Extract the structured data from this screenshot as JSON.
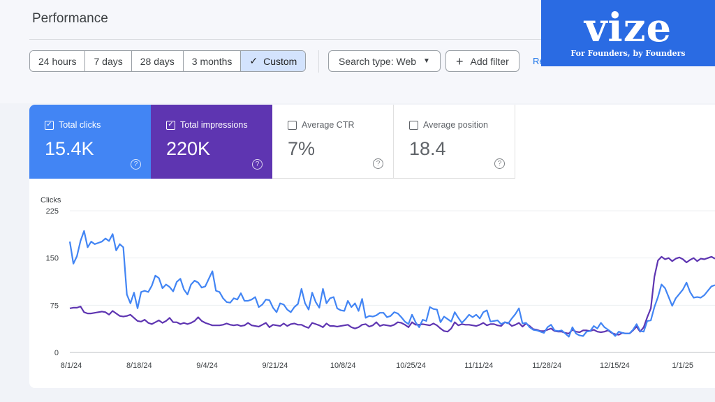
{
  "page": {
    "title": "Performance"
  },
  "date_range": {
    "options": [
      "24 hours",
      "7 days",
      "28 days",
      "3 months",
      "Custom"
    ],
    "selected": "Custom"
  },
  "filters": {
    "search_type": "Search type: Web",
    "add_filter": "Add filter",
    "reset": "Re"
  },
  "logo": {
    "word": "vize",
    "tagline": "For Founders, by Founders"
  },
  "metrics": [
    {
      "label": "Total clicks",
      "value": "15.4K",
      "checked": true,
      "color": "#4285f4"
    },
    {
      "label": "Total impressions",
      "value": "220K",
      "checked": true,
      "color": "#5e35b1"
    },
    {
      "label": "Average CTR",
      "value": "7%",
      "checked": false
    },
    {
      "label": "Average position",
      "value": "18.4",
      "checked": false
    }
  ],
  "chart_data": {
    "type": "line",
    "ylabel": "Clicks",
    "ylim": [
      0,
      225
    ],
    "yticks": [
      "225",
      "150",
      "75",
      "0"
    ],
    "x_tick_labels": [
      "8/1/24",
      "8/18/24",
      "9/4/24",
      "9/21/24",
      "10/8/24",
      "10/25/24",
      "11/11/24",
      "11/28/24",
      "12/15/24",
      "1/1/25"
    ],
    "grid": true,
    "series": [
      {
        "name": "Total clicks",
        "color": "#4285f4",
        "values": [
          176,
          141,
          153,
          177,
          193,
          167,
          176,
          172,
          174,
          176,
          181,
          177,
          188,
          162,
          172,
          167,
          92,
          78,
          95,
          70,
          96,
          98,
          96,
          106,
          122,
          118,
          102,
          108,
          104,
          97,
          112,
          117,
          100,
          92,
          108,
          114,
          111,
          103,
          105,
          117,
          129,
          98,
          96,
          86,
          80,
          79,
          86,
          84,
          94,
          82,
          82,
          84,
          88,
          72,
          76,
          84,
          83,
          71,
          64,
          78,
          76,
          68,
          64,
          72,
          77,
          101,
          78,
          68,
          95,
          80,
          71,
          101,
          78,
          86,
          88,
          70,
          67,
          66,
          82,
          72,
          78,
          66,
          85,
          55,
          58,
          57,
          59,
          63,
          63,
          56,
          58,
          64,
          62,
          56,
          49,
          45,
          60,
          48,
          40,
          52,
          50,
          72,
          69,
          68,
          48,
          57,
          53,
          49,
          64,
          55,
          47,
          53,
          60,
          56,
          60,
          54,
          64,
          67,
          49,
          50,
          51,
          45,
          48,
          46,
          54,
          61,
          70,
          46,
          47,
          40,
          36,
          35,
          33,
          31,
          40,
          44,
          35,
          34,
          35,
          30,
          25,
          40,
          30,
          27,
          26,
          33,
          34,
          42,
          38,
          47,
          40,
          36,
          32,
          26,
          33,
          31,
          30,
          30,
          36,
          45,
          34,
          33,
          50,
          51,
          72,
          88,
          108,
          102,
          88,
          74,
          86,
          93,
          100,
          111,
          96,
          87,
          88,
          87,
          91,
          98,
          105,
          107
        ]
      },
      {
        "name": "Total impressions",
        "color": "#5e35b1",
        "values": [
          70,
          71,
          71,
          73,
          64,
          62,
          62,
          63,
          64,
          65,
          64,
          60,
          66,
          62,
          58,
          57,
          58,
          60,
          55,
          50,
          49,
          52,
          47,
          45,
          48,
          51,
          47,
          50,
          55,
          48,
          48,
          45,
          47,
          45,
          47,
          50,
          56,
          50,
          47,
          45,
          43,
          43,
          43,
          44,
          46,
          44,
          43,
          44,
          42,
          43,
          47,
          43,
          42,
          41,
          44,
          47,
          40,
          44,
          43,
          42,
          46,
          42,
          45,
          46,
          44,
          44,
          41,
          39,
          47,
          45,
          43,
          40,
          46,
          42,
          42,
          41,
          42,
          43,
          44,
          40,
          38,
          40,
          44,
          45,
          41,
          43,
          48,
          42,
          44,
          43,
          42,
          44,
          48,
          47,
          44,
          40,
          48,
          44,
          44,
          45,
          44,
          43,
          46,
          43,
          38,
          34,
          33,
          38,
          48,
          43,
          45,
          44,
          44,
          43,
          42,
          44,
          47,
          43,
          45,
          45,
          43,
          42,
          48,
          47,
          42,
          44,
          47,
          41,
          46,
          42,
          37,
          36,
          34,
          34,
          36,
          38,
          34,
          33,
          33,
          31,
          30,
          36,
          33,
          32,
          35,
          35,
          34,
          36,
          33,
          32,
          33,
          35,
          31,
          29,
          28,
          31,
          30,
          30,
          35,
          41,
          33,
          40,
          56,
          70,
          120,
          146,
          152,
          148,
          150,
          145,
          149,
          151,
          148,
          143,
          147,
          150,
          145,
          149,
          148,
          150,
          152,
          149
        ]
      }
    ]
  }
}
